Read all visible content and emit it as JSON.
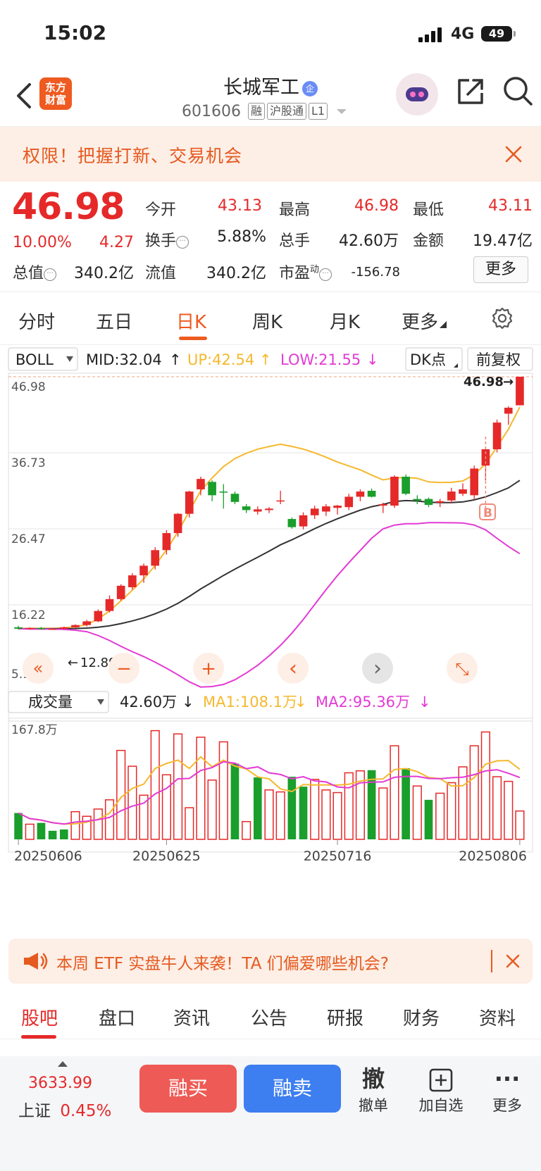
{
  "status_bar": {
    "time": "15:02",
    "network": "4G",
    "battery": "49"
  },
  "header": {
    "logo_line1": "东方",
    "logo_line2": "财富",
    "title": "长城军工",
    "title_badge": "企",
    "code": "601606",
    "tags": [
      "融",
      "沪股通",
      "L1"
    ]
  },
  "promo_banner": {
    "text": "权限！把握打新、交易机会"
  },
  "quote": {
    "price": "46.98",
    "change_pct": "10.00%",
    "change": "4.27",
    "items": [
      {
        "label": "今开",
        "value": "43.13",
        "color": "red"
      },
      {
        "label": "最高",
        "value": "46.98",
        "color": "red"
      },
      {
        "label": "最低",
        "value": "43.11",
        "color": "red"
      },
      {
        "label": "换手",
        "value": "5.88%",
        "color": "black"
      },
      {
        "label": "总手",
        "value": "42.60万",
        "color": "black"
      },
      {
        "label": "金额",
        "value": "19.47亿",
        "color": "black"
      },
      {
        "label": "总值",
        "value": "340.2亿",
        "color": "black"
      },
      {
        "label": "流值",
        "value": "340.2亿",
        "color": "black"
      },
      {
        "label": "市盈",
        "value": "-156.78",
        "color": "black"
      }
    ],
    "pe_superscript": "动",
    "more_label": "更多"
  },
  "kline_tabs": {
    "items": [
      "分时",
      "五日",
      "日K",
      "周K",
      "月K",
      "更多"
    ],
    "active": "日K"
  },
  "chart_data": [
    {
      "type": "candlestick",
      "indicator": "BOLL",
      "legend": {
        "mid": "MID:32.04",
        "up": "UP:42.54",
        "low": "LOW:21.55"
      },
      "dk_button": "DK点",
      "adjust_button": "前复权",
      "y_ticks": [
        "46.98",
        "36.73",
        "26.47",
        "16.22",
        "5.97"
      ],
      "ylim": [
        5.97,
        46.98
      ],
      "annotations": {
        "high_price": "46.98",
        "low_price": "12.89",
        "signal": "B"
      },
      "candles": [
        [
          13.2,
          13.4,
          12.9,
          13.0
        ],
        [
          13.0,
          13.2,
          12.95,
          13.1
        ],
        [
          13.1,
          13.25,
          12.9,
          12.95
        ],
        [
          12.95,
          13.1,
          12.9,
          13.0
        ],
        [
          13.0,
          13.3,
          12.89,
          13.2
        ],
        [
          13.2,
          13.6,
          13.1,
          13.5
        ],
        [
          13.5,
          14.2,
          13.3,
          14.0
        ],
        [
          14.0,
          15.6,
          13.9,
          15.4
        ],
        [
          15.4,
          17.5,
          15.2,
          17.0
        ],
        [
          17.0,
          19.0,
          16.8,
          18.8
        ],
        [
          18.6,
          20.5,
          18.3,
          20.2
        ],
        [
          20.2,
          21.8,
          19.2,
          21.5
        ],
        [
          21.5,
          24.0,
          21.0,
          23.6
        ],
        [
          23.6,
          26.3,
          23.0,
          25.9
        ],
        [
          25.9,
          28.6,
          25.4,
          28.5
        ],
        [
          28.5,
          31.6,
          28.0,
          31.5
        ],
        [
          31.8,
          33.5,
          31.0,
          33.2
        ],
        [
          32.8,
          33.0,
          30.2,
          31.0
        ],
        [
          31.5,
          32.5,
          29.2,
          31.4
        ],
        [
          31.2,
          31.5,
          29.8,
          30.1
        ],
        [
          29.5,
          29.8,
          28.6,
          29.0
        ],
        [
          28.8,
          29.5,
          28.4,
          29.1
        ],
        [
          29.0,
          29.4,
          28.6,
          29.2
        ],
        [
          30.2,
          31.6,
          29.8,
          30.3
        ],
        [
          27.8,
          28.0,
          26.5,
          26.7
        ],
        [
          26.8,
          28.7,
          26.4,
          28.3
        ],
        [
          28.3,
          29.6,
          27.8,
          29.2
        ],
        [
          28.8,
          29.8,
          28.2,
          29.5
        ],
        [
          29.3,
          29.7,
          28.4,
          29.6
        ],
        [
          29.4,
          31.2,
          29.0,
          30.8
        ],
        [
          30.8,
          31.8,
          30.2,
          31.5
        ],
        [
          31.6,
          31.9,
          30.7,
          30.8
        ],
        [
          29.6,
          30.0,
          28.6,
          29.8
        ],
        [
          29.6,
          33.7,
          29.3,
          33.5
        ],
        [
          33.5,
          33.8,
          31.0,
          31.2
        ],
        [
          30.5,
          31.0,
          29.8,
          30.3
        ],
        [
          30.5,
          30.7,
          29.4,
          29.7
        ],
        [
          30.0,
          30.5,
          29.4,
          30.2
        ],
        [
          30.3,
          32.0,
          29.9,
          31.5
        ],
        [
          31.2,
          32.6,
          30.9,
          31.8
        ],
        [
          31.0,
          35.0,
          30.4,
          34.6
        ],
        [
          35.0,
          37.5,
          33.0,
          37.2
        ],
        [
          37.2,
          41.2,
          36.8,
          40.8
        ],
        [
          42.0,
          43.0,
          40.5,
          42.8
        ],
        [
          43.13,
          46.98,
          43.11,
          46.98
        ]
      ]
    },
    {
      "type": "bar",
      "indicator_select": "成交量",
      "legend": {
        "vol": "42.60万",
        "ma1": "MA1:108.1万",
        "ma2": "MA2:95.36万"
      },
      "max_label": "167.8万",
      "x_labels": [
        "20250606",
        "20250625",
        "20250716",
        "20250806"
      ],
      "unit": "万",
      "volumes": [
        [
          40,
          "d"
        ],
        [
          23,
          "u"
        ],
        [
          25,
          "d"
        ],
        [
          13,
          "d"
        ],
        [
          15,
          "d"
        ],
        [
          42,
          "u"
        ],
        [
          35,
          "u"
        ],
        [
          46,
          "u"
        ],
        [
          60,
          "u"
        ],
        [
          135,
          "u"
        ],
        [
          111,
          "u"
        ],
        [
          67,
          "u"
        ],
        [
          165,
          "u"
        ],
        [
          98,
          "u"
        ],
        [
          160,
          "u"
        ],
        [
          48,
          "u"
        ],
        [
          155,
          "u"
        ],
        [
          90,
          "u"
        ],
        [
          148,
          "u"
        ],
        [
          115,
          "d"
        ],
        [
          27,
          "u"
        ],
        [
          94,
          "d"
        ],
        [
          75,
          "u"
        ],
        [
          72,
          "u"
        ],
        [
          95,
          "d"
        ],
        [
          80,
          "d"
        ],
        [
          91,
          "u"
        ],
        [
          75,
          "u"
        ],
        [
          71,
          "u"
        ],
        [
          101,
          "u"
        ],
        [
          104,
          "u"
        ],
        [
          105,
          "d"
        ],
        [
          78,
          "u"
        ],
        [
          142,
          "u"
        ],
        [
          108,
          "d"
        ],
        [
          81,
          "u"
        ],
        [
          60,
          "d"
        ],
        [
          70,
          "u"
        ],
        [
          86,
          "u"
        ],
        [
          110,
          "u"
        ],
        [
          142,
          "u"
        ],
        [
          163,
          "u"
        ],
        [
          95,
          "u"
        ],
        [
          88,
          "u"
        ],
        [
          43,
          "u"
        ]
      ]
    }
  ],
  "chart_controls": [
    "«",
    "−",
    "+",
    "‹",
    "›",
    "⤡"
  ],
  "etf_banner": {
    "text": "本周 ETF 实盘牛人来袭！TA 们偏爱哪些机会?"
  },
  "bottom_tabs": {
    "items": [
      "股吧",
      "盘口",
      "资讯",
      "公告",
      "研报",
      "财务",
      "资料"
    ],
    "active": "股吧"
  },
  "bottom_bar": {
    "index_value": "3633.99",
    "index_name": "上证",
    "index_change": "0.45%",
    "buy_label": "融买",
    "sell_label": "融卖",
    "cancel": {
      "icon": "撤",
      "label": "撤单"
    },
    "add": {
      "label": "加自选"
    },
    "more": {
      "label": "更多"
    }
  },
  "colors": {
    "up": "#e52929",
    "down": "#1a9e2c",
    "mid": "#333333",
    "upper": "#f5b82e",
    "lower": "#e33ad3",
    "accent": "#ee5a20"
  }
}
